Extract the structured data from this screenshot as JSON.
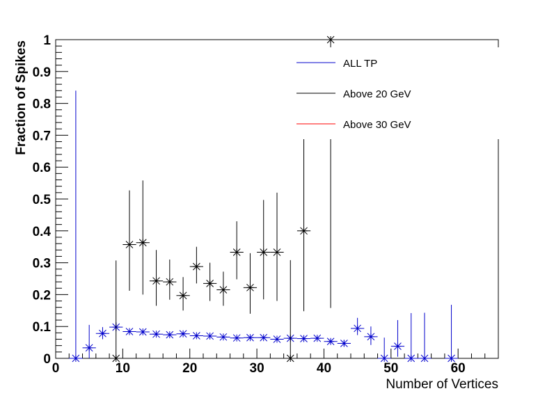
{
  "chart_data": {
    "type": "scatter",
    "title": "",
    "xlabel": "Number of Vertices",
    "ylabel": "Fraction of Spikes",
    "xlim": [
      0,
      66
    ],
    "ylim": [
      0,
      1
    ],
    "x_ticks": [
      "0",
      "10",
      "20",
      "30",
      "40",
      "50",
      "60"
    ],
    "y_ticks": [
      "0",
      "0.1",
      "0.2",
      "0.3",
      "0.4",
      "0.5",
      "0.6",
      "0.7",
      "0.8",
      "0.9",
      "1"
    ],
    "grid": false,
    "legend_position": "top-right",
    "legend": [
      {
        "name": "ALL TP",
        "color": "#0000cc"
      },
      {
        "name": "Above 20 GeV",
        "color": "#000000"
      },
      {
        "name": "Above 30 GeV",
        "color": "#ff0000"
      }
    ],
    "bin_half_width": 1,
    "series": [
      {
        "name": "ALL TP",
        "color": "#0000cc",
        "points": [
          {
            "x": 3,
            "y": 0.0,
            "ylo": 0.0,
            "yhi": 0.84
          },
          {
            "x": 5,
            "y": 0.033,
            "ylo": 0.0,
            "yhi": 0.105
          },
          {
            "x": 7,
            "y": 0.078,
            "ylo": 0.06,
            "yhi": 0.098
          },
          {
            "x": 9,
            "y": 0.098,
            "ylo": 0.085,
            "yhi": 0.113
          },
          {
            "x": 11,
            "y": 0.084,
            "ylo": 0.078,
            "yhi": 0.09
          },
          {
            "x": 13,
            "y": 0.083,
            "ylo": 0.078,
            "yhi": 0.088
          },
          {
            "x": 15,
            "y": 0.076,
            "ylo": 0.072,
            "yhi": 0.08
          },
          {
            "x": 17,
            "y": 0.074,
            "ylo": 0.07,
            "yhi": 0.078
          },
          {
            "x": 19,
            "y": 0.077,
            "ylo": 0.073,
            "yhi": 0.081
          },
          {
            "x": 21,
            "y": 0.071,
            "ylo": 0.068,
            "yhi": 0.074
          },
          {
            "x": 23,
            "y": 0.07,
            "ylo": 0.067,
            "yhi": 0.073
          },
          {
            "x": 25,
            "y": 0.067,
            "ylo": 0.064,
            "yhi": 0.07
          },
          {
            "x": 27,
            "y": 0.064,
            "ylo": 0.061,
            "yhi": 0.067
          },
          {
            "x": 29,
            "y": 0.065,
            "ylo": 0.062,
            "yhi": 0.068
          },
          {
            "x": 31,
            "y": 0.065,
            "ylo": 0.062,
            "yhi": 0.068
          },
          {
            "x": 33,
            "y": 0.06,
            "ylo": 0.057,
            "yhi": 0.063
          },
          {
            "x": 35,
            "y": 0.063,
            "ylo": 0.06,
            "yhi": 0.066
          },
          {
            "x": 37,
            "y": 0.062,
            "ylo": 0.058,
            "yhi": 0.066
          },
          {
            "x": 39,
            "y": 0.063,
            "ylo": 0.058,
            "yhi": 0.068
          },
          {
            "x": 41,
            "y": 0.053,
            "ylo": 0.046,
            "yhi": 0.06
          },
          {
            "x": 43,
            "y": 0.047,
            "ylo": 0.037,
            "yhi": 0.058
          },
          {
            "x": 45,
            "y": 0.094,
            "ylo": 0.073,
            "yhi": 0.127
          },
          {
            "x": 47,
            "y": 0.068,
            "ylo": 0.042,
            "yhi": 0.1
          },
          {
            "x": 49,
            "y": 0.0,
            "ylo": 0.0,
            "yhi": 0.065
          },
          {
            "x": 51,
            "y": 0.038,
            "ylo": 0.005,
            "yhi": 0.12
          },
          {
            "x": 53,
            "y": 0.0,
            "ylo": 0.0,
            "yhi": 0.142
          },
          {
            "x": 55,
            "y": 0.0,
            "ylo": 0.0,
            "yhi": 0.143
          },
          {
            "x": 59,
            "y": 0.0,
            "ylo": 0.0,
            "yhi": 0.168
          }
        ]
      },
      {
        "name": "Above 20 GeV",
        "color": "#000000",
        "points": [
          {
            "x": 9,
            "y": 0.0,
            "ylo": 0.0,
            "yhi": 0.307
          },
          {
            "x": 11,
            "y": 0.357,
            "ylo": 0.212,
            "yhi": 0.527
          },
          {
            "x": 13,
            "y": 0.363,
            "ylo": 0.2,
            "yhi": 0.558
          },
          {
            "x": 15,
            "y": 0.243,
            "ylo": 0.165,
            "yhi": 0.34
          },
          {
            "x": 17,
            "y": 0.24,
            "ylo": 0.184,
            "yhi": 0.31
          },
          {
            "x": 19,
            "y": 0.197,
            "ylo": 0.15,
            "yhi": 0.255
          },
          {
            "x": 21,
            "y": 0.288,
            "ylo": 0.235,
            "yhi": 0.35
          },
          {
            "x": 23,
            "y": 0.235,
            "ylo": 0.18,
            "yhi": 0.3
          },
          {
            "x": 25,
            "y": 0.215,
            "ylo": 0.165,
            "yhi": 0.272
          },
          {
            "x": 27,
            "y": 0.333,
            "ylo": 0.248,
            "yhi": 0.43
          },
          {
            "x": 29,
            "y": 0.222,
            "ylo": 0.14,
            "yhi": 0.33
          },
          {
            "x": 31,
            "y": 0.333,
            "ylo": 0.185,
            "yhi": 0.497
          },
          {
            "x": 33,
            "y": 0.333,
            "ylo": 0.18,
            "yhi": 0.52
          },
          {
            "x": 35,
            "y": 0.0,
            "ylo": 0.0,
            "yhi": 0.308
          },
          {
            "x": 37,
            "y": 0.4,
            "ylo": 0.148,
            "yhi": 0.7
          },
          {
            "x": 41,
            "y": 1.0,
            "ylo": 0.158,
            "yhi": 1.0
          }
        ]
      },
      {
        "name": "Above 30 GeV",
        "color": "#ff0000",
        "points": []
      }
    ]
  }
}
